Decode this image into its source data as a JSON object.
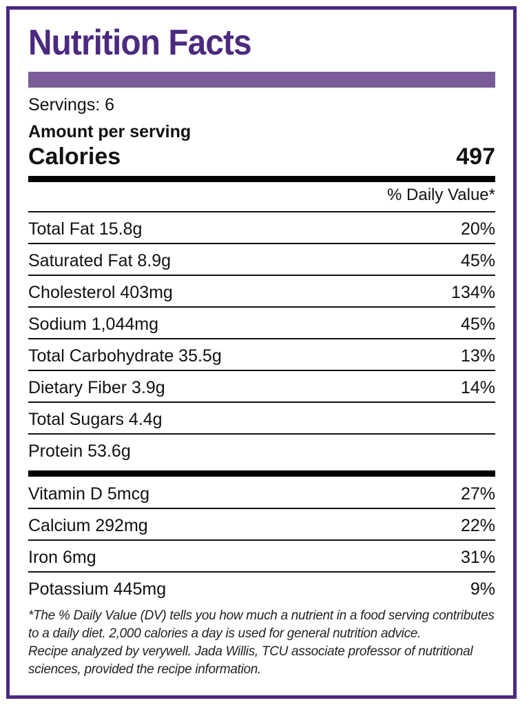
{
  "title": "Nutrition Facts",
  "servings": "Servings: 6",
  "amount_per_serving": "Amount per serving",
  "calories": {
    "label": "Calories",
    "value": "497"
  },
  "daily_value_header": "% Daily Value*",
  "nutrients": [
    {
      "name": "Total Fat 15.8g",
      "dv": "20%"
    },
    {
      "name": "Saturated Fat 8.9g",
      "dv": "45%"
    },
    {
      "name": "Cholesterol 403mg",
      "dv": "134%"
    },
    {
      "name": "Sodium 1,044mg",
      "dv": "45%"
    },
    {
      "name": "Total Carbohydrate 35.5g",
      "dv": "13%"
    },
    {
      "name": "Dietary Fiber 3.9g",
      "dv": "14%"
    },
    {
      "name": "Total Sugars 4.4g",
      "dv": ""
    },
    {
      "name": "Protein 53.6g",
      "dv": ""
    }
  ],
  "vitamins": [
    {
      "name": "Vitamin D 5mcg",
      "dv": "27%"
    },
    {
      "name": "Calcium 292mg",
      "dv": "22%"
    },
    {
      "name": "Iron 6mg",
      "dv": "31%"
    },
    {
      "name": "Potassium 445mg",
      "dv": "9%"
    }
  ],
  "footnote": {
    "line1": "*The % Daily Value (DV) tells you how much a nutrient in a food serving contributes to a daily diet. 2,000 calories a day is used for general nutrition advice.",
    "line2": "Recipe analyzed by verywell. Jada Willis, TCU associate professor of nutritional sciences, provided the recipe information."
  },
  "colors": {
    "brand": "#4b2a7f",
    "title_bar": "#7a5d98"
  }
}
